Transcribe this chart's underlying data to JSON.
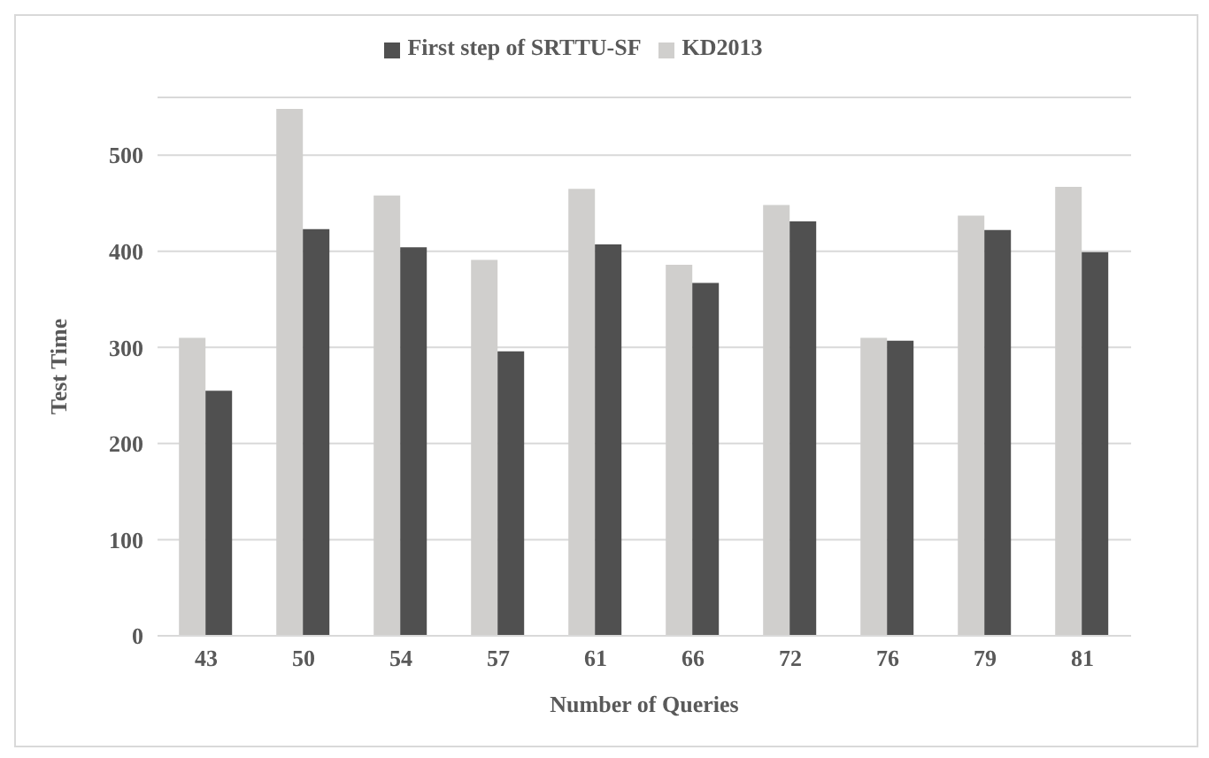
{
  "chart_data": {
    "type": "bar",
    "xlabel": "Number  of Queries",
    "ylabel": "Test Time",
    "categories": [
      "43",
      "50",
      "54",
      "57",
      "61",
      "66",
      "72",
      "76",
      "79",
      "81"
    ],
    "series": [
      {
        "name": "KD2013",
        "color": "#d0cfcd",
        "values": [
          310,
          548,
          458,
          391,
          465,
          386,
          448,
          310,
          437,
          467
        ]
      },
      {
        "name": "First step of SRTTU-SF",
        "color": "#505050",
        "values": [
          255,
          423,
          404,
          296,
          407,
          367,
          431,
          307,
          422,
          399
        ]
      }
    ],
    "ylim": [
      0,
      560
    ],
    "yticks": [
      0,
      100,
      200,
      300,
      400,
      500
    ],
    "grid": "y",
    "legend": "top"
  }
}
